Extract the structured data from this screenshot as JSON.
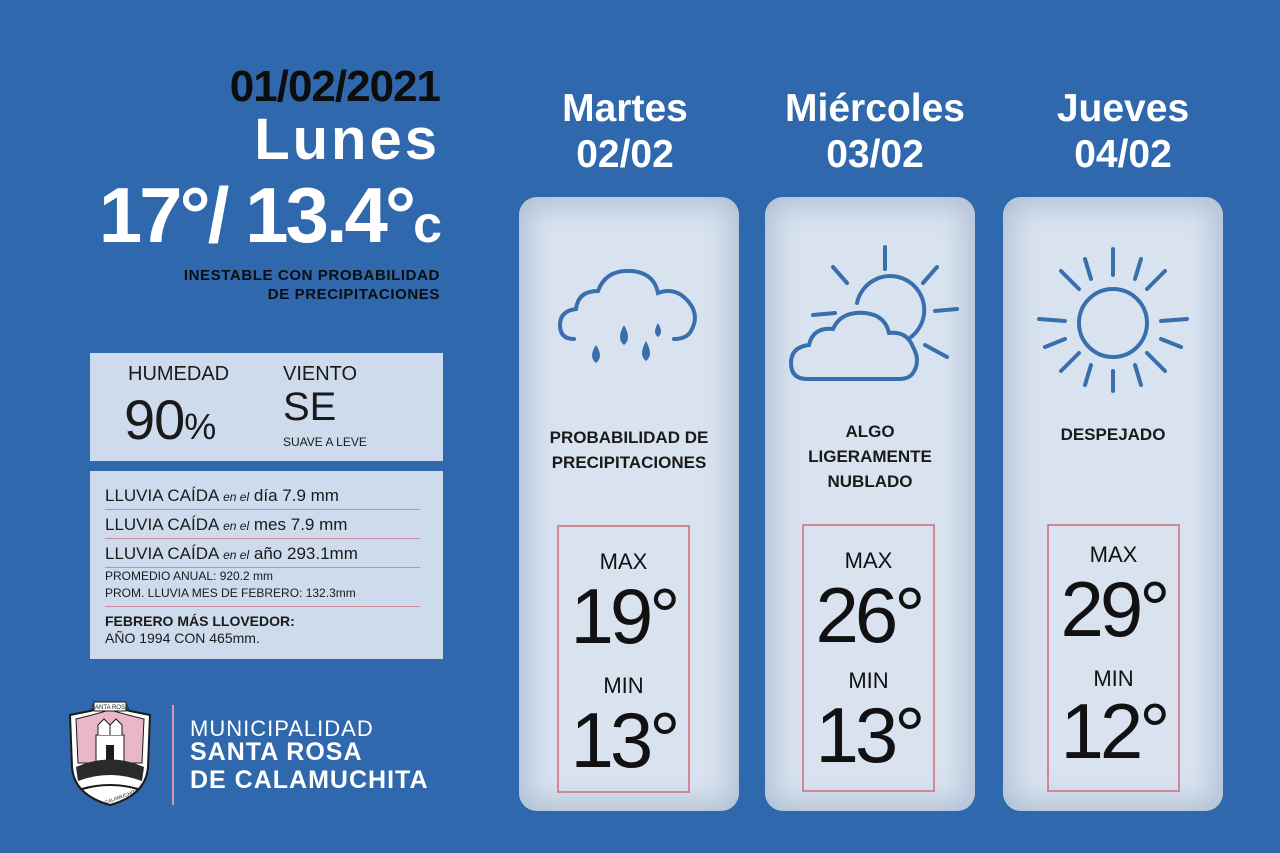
{
  "today": {
    "date": "01/02/2021",
    "weekday": "Lunes",
    "temp_max": "17°/",
    "temp_now": "13.4°",
    "unit": "c",
    "description_line1": "INESTABLE CON PROBABILIDAD",
    "description_line2": "DE PRECIPITACIONES"
  },
  "humidity": {
    "label": "HUMEDAD",
    "value": "90",
    "unit": "%"
  },
  "wind": {
    "label": "VIENTO",
    "value": "SE",
    "note": "SUAVE A LEVE"
  },
  "rain": {
    "rows": [
      {
        "label": "LLUVIA CAÍDA",
        "em": "en el",
        "period": "día",
        "value": "7.9 mm"
      },
      {
        "label": "LLUVIA CAÍDA",
        "em": "en el",
        "period": "mes",
        "value": "7.9 mm"
      },
      {
        "label": "LLUVIA CAÍDA",
        "em": "en el",
        "period": "año",
        "value": "293.1mm"
      }
    ],
    "annual_avg": "PROMEDIO ANUAL: 920.2 mm",
    "feb_avg": "PROM. LLUVIA MES DE FEBRERO: 132.3mm",
    "feb_title": "FEBRERO MÁS LLOVEDOR:",
    "feb_text": "AÑO 1994 CON 465mm."
  },
  "municipality": {
    "label": "MUNICIPALIDAD",
    "name_line1": "SANTA ROSA",
    "name_line2": "DE CALAMUCHITA",
    "logo_text_top": "SANTA ROSA",
    "logo_text_bottom": "CALAMUCHITA"
  },
  "forecast": [
    {
      "weekday": "Martes",
      "date": "02/02",
      "icon": "rain-cloud-icon",
      "cond_lines": [
        "PROBABILIDAD DE",
        "PRECIPITACIONES"
      ],
      "max_label": "MAX",
      "max": "19°",
      "min_label": "MIN",
      "min": "13°"
    },
    {
      "weekday": "Miércoles",
      "date": "03/02",
      "icon": "partly-cloudy-icon",
      "cond_lines": [
        "ALGO",
        "LIGERAMENTE",
        "NUBLADO"
      ],
      "max_label": "MAX",
      "max": "26°",
      "min_label": "MIN",
      "min": "13°"
    },
    {
      "weekday": "Jueves",
      "date": "04/02",
      "icon": "sun-icon",
      "cond_lines": [
        "DESPEJADO"
      ],
      "max_label": "MAX",
      "max": "29°",
      "min_label": "MIN",
      "min": "12°"
    }
  ],
  "colors": {
    "background": "#2f68ac",
    "panel": "#cedbec",
    "card": "#d9e3f0",
    "accent_pink": "#d08898",
    "icon_blue": "#3a6fae"
  }
}
